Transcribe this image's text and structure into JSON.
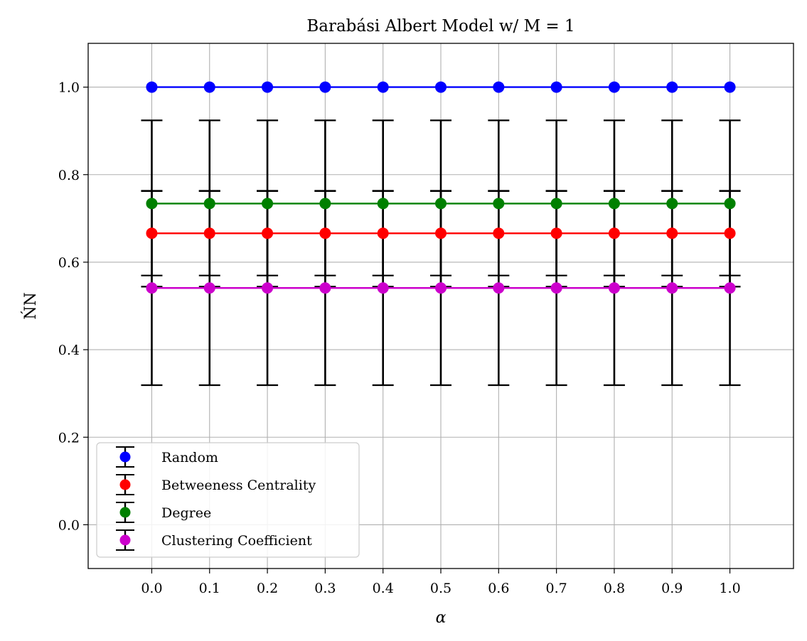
{
  "chart_data": {
    "type": "scatter",
    "title": "Barabási Albert Model w/ M = 1",
    "xlabel": "α",
    "ylabel": "ŃN",
    "x": [
      0.0,
      0.1,
      0.2,
      0.3,
      0.4,
      0.5,
      0.6,
      0.7,
      0.8,
      0.9,
      1.0
    ],
    "x_tick_labels": [
      "0.0",
      "0.1",
      "0.2",
      "0.3",
      "0.4",
      "0.5",
      "0.6",
      "0.7",
      "0.8",
      "0.9",
      "1.0"
    ],
    "y_ticks": [
      0.0,
      0.2,
      0.4,
      0.6,
      0.8,
      1.0
    ],
    "y_tick_labels": [
      "0.0",
      "0.2",
      "0.4",
      "0.6",
      "0.8",
      "1.0"
    ],
    "xlim": [
      -0.11,
      1.11
    ],
    "ylim": [
      -0.1,
      1.1
    ],
    "grid": true,
    "legend_position": "lower-left",
    "series": [
      {
        "name": "Random",
        "color": "#0000ff",
        "value": 1.0,
        "error": 0.0
      },
      {
        "name": "Betweeness Centrality",
        "color": "#ff0000",
        "value": 0.666,
        "error": 0.0965
      },
      {
        "name": "Degree",
        "color": "#008000",
        "value": 0.734,
        "error": 0.19
      },
      {
        "name": "Clustering Coefficient",
        "color": "#cc00cc",
        "value": 0.541,
        "error": 0.222
      }
    ]
  }
}
